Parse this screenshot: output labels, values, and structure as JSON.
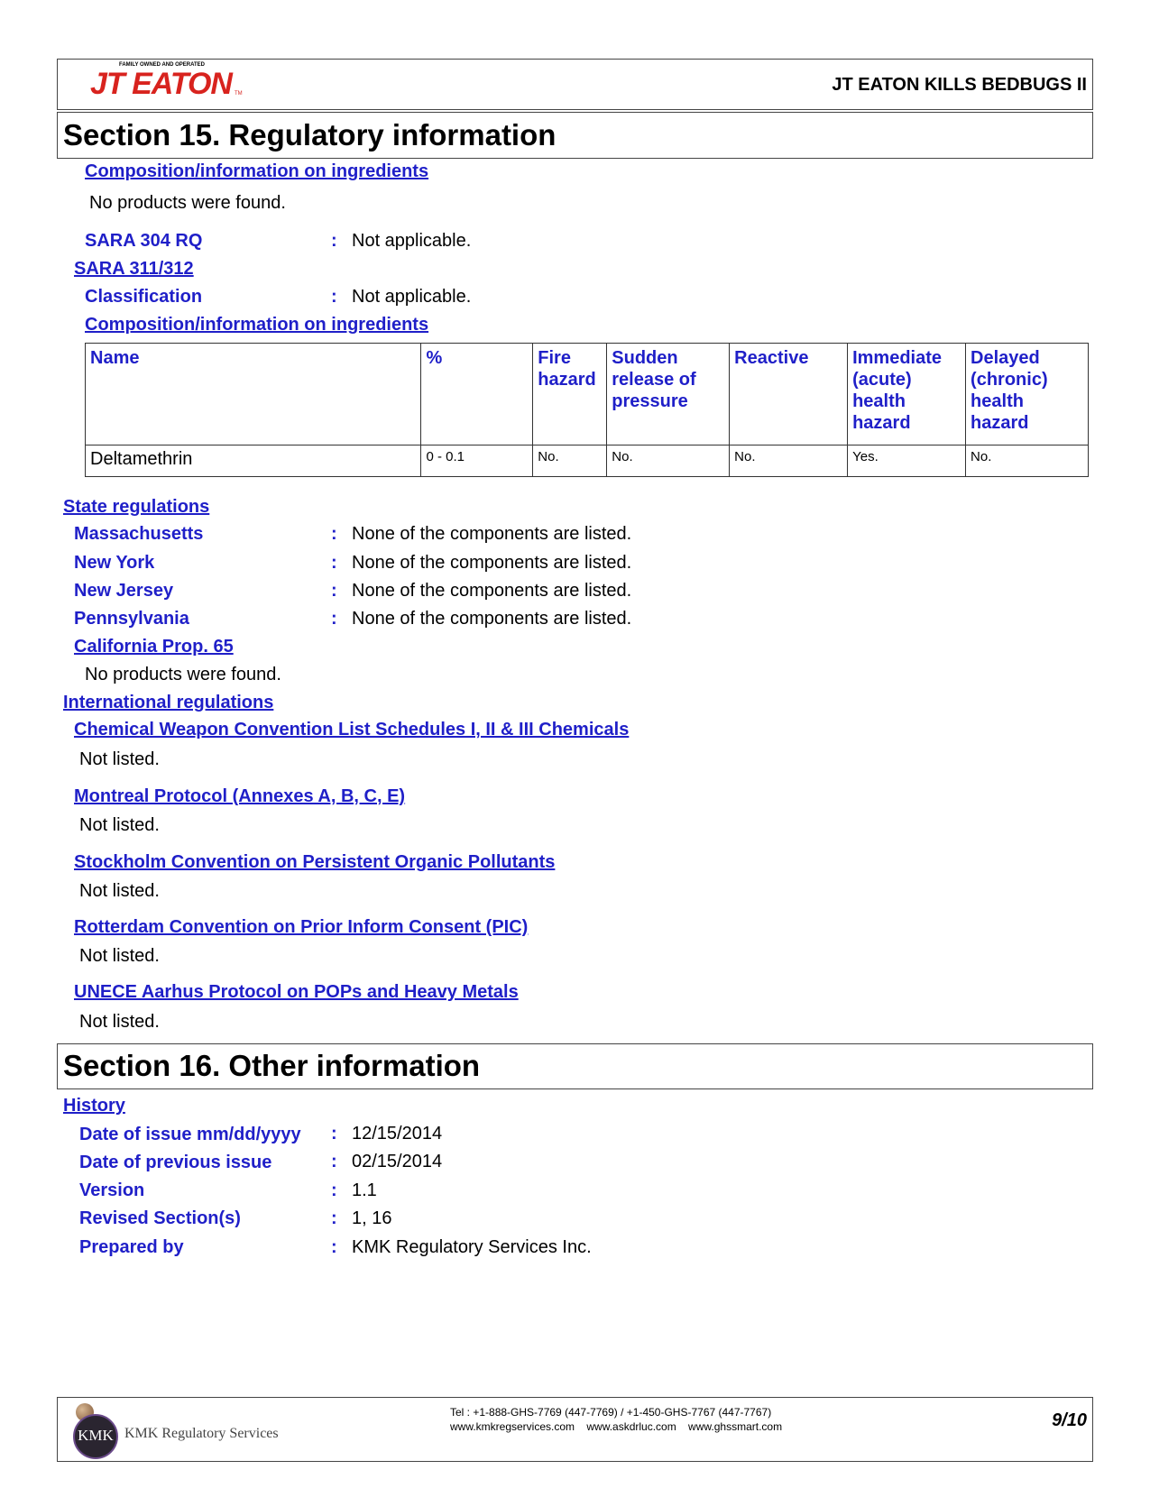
{
  "header": {
    "logo_tagline": "FAMILY OWNED AND OPERATED",
    "logo_text": "JT EATON",
    "logo_tm": "TM",
    "product": "JT EATON KILLS BEDBUGS II"
  },
  "section15": {
    "title": "Section 15. Regulatory information",
    "composition_link": "Composition/information on ingredients",
    "no_products": "No products were found.",
    "sara304_label": "SARA 304 RQ",
    "sara304_value": "Not applicable.",
    "sara311_link": "SARA 311/312",
    "classification_label": "Classification",
    "classification_value": "Not applicable.",
    "composition_link2": "Composition/information on ingredients",
    "table": {
      "headers": [
        "Name",
        "%",
        "Fire hazard",
        "Sudden release of pressure",
        "Reactive",
        "Immediate (acute) health hazard",
        "Delayed (chronic) health hazard"
      ],
      "rows": [
        [
          "Deltamethrin",
          "0 - 0.1",
          "No.",
          "No.",
          "No.",
          "Yes.",
          "No."
        ]
      ]
    },
    "state_link": "State regulations",
    "states": [
      {
        "label": "Massachusetts",
        "value": "None of the components are listed."
      },
      {
        "label": "New York",
        "value": "None of the components are listed."
      },
      {
        "label": "New Jersey",
        "value": "None of the components are listed."
      },
      {
        "label": "Pennsylvania",
        "value": "None of the components are listed."
      }
    ],
    "ca_link": "California Prop. 65",
    "ca_value": "No products were found.",
    "intl_link": "International regulations",
    "intl": [
      {
        "label": "Chemical Weapon Convention List Schedules I, II & III Chemicals",
        "value": "Not listed."
      },
      {
        "label": "Montreal Protocol (Annexes A, B, C, E)",
        "value": "Not listed."
      },
      {
        "label": "Stockholm Convention on Persistent Organic Pollutants",
        "value": "Not listed."
      },
      {
        "label": "Rotterdam Convention on Prior Inform Consent (PIC)",
        "value": "Not listed."
      },
      {
        "label": "UNECE Aarhus Protocol on POPs and Heavy Metals",
        "value": "Not listed."
      }
    ]
  },
  "section16": {
    "title": "Section 16. Other information",
    "history_link": "History",
    "rows": [
      {
        "label": "Date of issue mm/dd/yyyy",
        "value": "12/15/2014"
      },
      {
        "label": "Date of previous issue",
        "value": "02/15/2014"
      },
      {
        "label": "Version",
        "value": "1.1"
      },
      {
        "label": "Revised Section(s)",
        "value": "1, 16"
      },
      {
        "label": "Prepared by",
        "value": "KMK Regulatory Services Inc."
      }
    ]
  },
  "colon": ":",
  "footer": {
    "logo_letters": "KMK",
    "company": "KMK Regulatory Services",
    "tel": "Tel : +1-888-GHS-7769 (447-7769) / +1-450-GHS-7767 (447-7767)",
    "web": "www.kmkregservices.com    www.askdrluc.com    www.ghssmart.com",
    "page": "9/10"
  }
}
